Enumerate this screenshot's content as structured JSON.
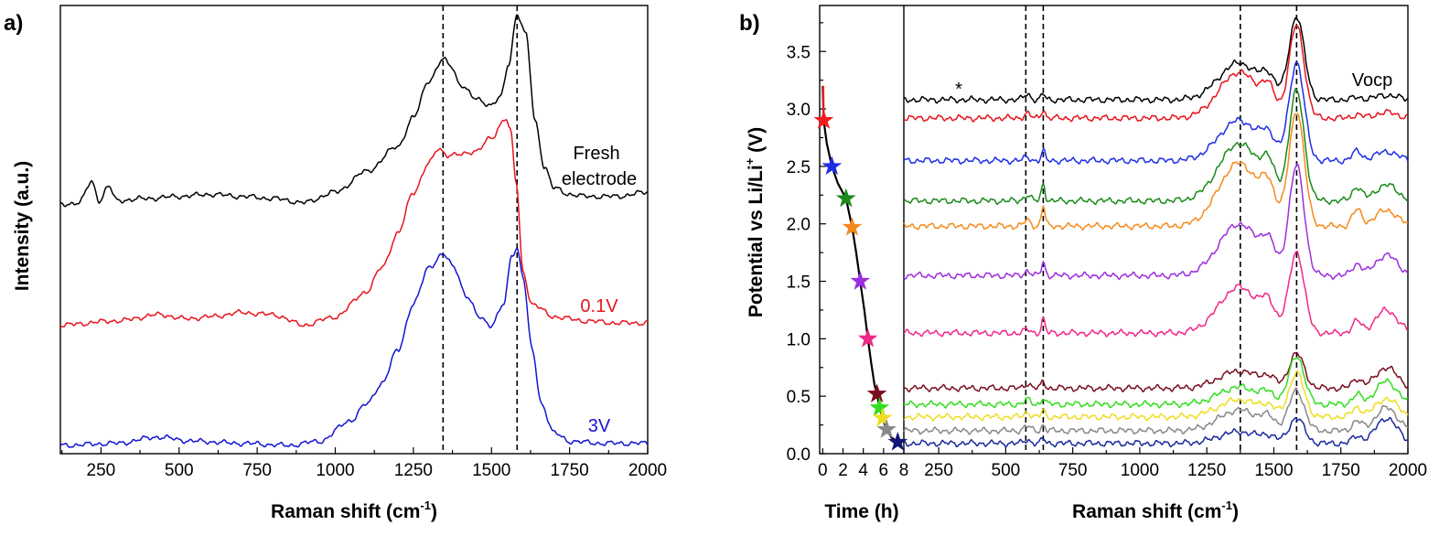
{
  "chart_data": [
    {
      "id": "a",
      "type": "line",
      "panel_label": "a)",
      "xlabel": "Raman shift (cm",
      "xlabel_sup": "-1",
      "xlabel_end": ")",
      "ylabel": "Intensity (a.u.)",
      "xlim": [
        120,
        2000
      ],
      "ylim": [
        0,
        10.8
      ],
      "xticks": [
        250,
        500,
        750,
        1000,
        1250,
        1500,
        1750,
        2000
      ],
      "dashed_x": [
        1345,
        1582
      ],
      "series": [
        {
          "name": "Fresh electrode",
          "color": "#000000",
          "baseline": 6.0,
          "points": [
            [
              120,
              6.0
            ],
            [
              180,
              6.05
            ],
            [
              220,
              6.55
            ],
            [
              245,
              6.1
            ],
            [
              275,
              6.45
            ],
            [
              300,
              6.1
            ],
            [
              400,
              6.15
            ],
            [
              500,
              6.2
            ],
            [
              600,
              6.25
            ],
            [
              700,
              6.2
            ],
            [
              800,
              6.15
            ],
            [
              900,
              6.05
            ],
            [
              1000,
              6.3
            ],
            [
              1100,
              6.8
            ],
            [
              1200,
              7.4
            ],
            [
              1250,
              8.1
            ],
            [
              1300,
              9.0
            ],
            [
              1345,
              9.5
            ],
            [
              1370,
              9.35
            ],
            [
              1400,
              8.9
            ],
            [
              1450,
              8.55
            ],
            [
              1500,
              8.4
            ],
            [
              1530,
              8.6
            ],
            [
              1555,
              9.4
            ],
            [
              1582,
              10.6
            ],
            [
              1610,
              10.1
            ],
            [
              1640,
              8.0
            ],
            [
              1670,
              6.9
            ],
            [
              1700,
              6.4
            ],
            [
              1750,
              6.25
            ],
            [
              1800,
              6.2
            ],
            [
              1900,
              6.2
            ],
            [
              2000,
              6.3
            ]
          ]
        },
        {
          "name": "0.1V",
          "color": "#e8141c",
          "baseline": 3.1,
          "points": [
            [
              120,
              3.1
            ],
            [
              300,
              3.2
            ],
            [
              440,
              3.35
            ],
            [
              520,
              3.25
            ],
            [
              600,
              3.3
            ],
            [
              700,
              3.4
            ],
            [
              800,
              3.35
            ],
            [
              900,
              3.1
            ],
            [
              1000,
              3.3
            ],
            [
              1100,
              3.9
            ],
            [
              1150,
              4.5
            ],
            [
              1200,
              5.3
            ],
            [
              1250,
              6.3
            ],
            [
              1300,
              7.0
            ],
            [
              1330,
              7.35
            ],
            [
              1360,
              7.2
            ],
            [
              1400,
              7.2
            ],
            [
              1450,
              7.3
            ],
            [
              1500,
              7.6
            ],
            [
              1545,
              8.1
            ],
            [
              1560,
              7.8
            ],
            [
              1580,
              6.5
            ],
            [
              1600,
              4.4
            ],
            [
              1630,
              3.6
            ],
            [
              1700,
              3.3
            ],
            [
              1800,
              3.2
            ],
            [
              1900,
              3.15
            ],
            [
              2000,
              3.15
            ]
          ]
        },
        {
          "name": "3V",
          "color": "#1414d2",
          "baseline": 0.2,
          "points": [
            [
              120,
              0.2
            ],
            [
              300,
              0.25
            ],
            [
              430,
              0.4
            ],
            [
              550,
              0.3
            ],
            [
              700,
              0.25
            ],
            [
              850,
              0.2
            ],
            [
              950,
              0.3
            ],
            [
              1050,
              0.8
            ],
            [
              1100,
              1.2
            ],
            [
              1150,
              1.7
            ],
            [
              1200,
              2.5
            ],
            [
              1250,
              3.6
            ],
            [
              1300,
              4.5
            ],
            [
              1345,
              4.8
            ],
            [
              1380,
              4.5
            ],
            [
              1420,
              3.8
            ],
            [
              1460,
              3.3
            ],
            [
              1500,
              3.1
            ],
            [
              1540,
              3.6
            ],
            [
              1565,
              4.8
            ],
            [
              1582,
              4.95
            ],
            [
              1600,
              4.3
            ],
            [
              1630,
              2.5
            ],
            [
              1660,
              1.2
            ],
            [
              1700,
              0.5
            ],
            [
              1750,
              0.3
            ],
            [
              1850,
              0.25
            ],
            [
              2000,
              0.25
            ]
          ]
        }
      ],
      "annotations": [
        {
          "text": "Fresh",
          "color": "#000000"
        },
        {
          "text": "electrode",
          "color": "#000000"
        },
        {
          "text": "0.1V",
          "color": "#e8141c"
        },
        {
          "text": "3V",
          "color": "#1414d2"
        }
      ]
    },
    {
      "id": "b-time",
      "type": "scatter",
      "panel_label": "b)",
      "xlabel": "Time (h)",
      "ylabel": "Potential vs Li/Li",
      "ylabel_sup": "+",
      "ylabel_end": " (V)",
      "xlim": [
        -0.3,
        8
      ],
      "ylim": [
        0.0,
        3.9
      ],
      "xticks": [
        0,
        2,
        4,
        6,
        8
      ],
      "yticks": [
        0.0,
        0.5,
        1.0,
        1.5,
        2.0,
        2.5,
        3.0,
        3.5
      ],
      "curve": [
        [
          0.0,
          3.2
        ],
        [
          0.1,
          2.9
        ],
        [
          0.4,
          2.7
        ],
        [
          0.9,
          2.5
        ],
        [
          1.5,
          2.35
        ],
        [
          2.3,
          2.22
        ],
        [
          2.9,
          1.97
        ],
        [
          3.3,
          1.75
        ],
        [
          3.7,
          1.5
        ],
        [
          4.1,
          1.25
        ],
        [
          4.45,
          1.0
        ],
        [
          4.8,
          0.78
        ],
        [
          5.1,
          0.6
        ],
        [
          5.35,
          0.52
        ],
        [
          5.6,
          0.4
        ],
        [
          5.9,
          0.31
        ],
        [
          6.3,
          0.21
        ],
        [
          6.8,
          0.14
        ],
        [
          7.4,
          0.1
        ]
      ],
      "markers": [
        {
          "x": 0.1,
          "y": 2.9,
          "color": "#f21c1c"
        },
        {
          "x": 0.9,
          "y": 2.5,
          "color": "#1f2ee6"
        },
        {
          "x": 2.3,
          "y": 2.22,
          "color": "#1a8a1a"
        },
        {
          "x": 2.9,
          "y": 1.97,
          "color": "#f58a1c"
        },
        {
          "x": 3.7,
          "y": 1.5,
          "color": "#9b2ee0"
        },
        {
          "x": 4.45,
          "y": 1.0,
          "color": "#f02888"
        },
        {
          "x": 5.35,
          "y": 0.52,
          "color": "#7a0e1e"
        },
        {
          "x": 5.6,
          "y": 0.4,
          "color": "#33dd22"
        },
        {
          "x": 5.9,
          "y": 0.31,
          "color": "#eedd22"
        },
        {
          "x": 6.3,
          "y": 0.21,
          "color": "#888888"
        },
        {
          "x": 7.4,
          "y": 0.1,
          "color": "#141478"
        }
      ]
    },
    {
      "id": "b-raman",
      "type": "line",
      "xlabel": "Raman shift (cm",
      "xlabel_sup": "-1",
      "xlabel_end": ")",
      "xlim": [
        120,
        2000
      ],
      "ylim": [
        0.0,
        3.9
      ],
      "xticks": [
        250,
        500,
        750,
        1000,
        1250,
        1500,
        1750,
        2000
      ],
      "dashed_x": [
        575,
        640,
        1375,
        1585
      ],
      "annotations": [
        {
          "text": "Vocp",
          "color": "#000000"
        },
        {
          "text": "*",
          "color": "#000000"
        }
      ],
      "series": [
        {
          "color": "#000000",
          "baseline": 3.08,
          "peak1585": 0.72,
          "peak1375": 0.32,
          "peak640": 0.05,
          "peak580": 0.05,
          "peak1800": 0.02,
          "peak1920": 0.04
        },
        {
          "color": "#e8141c",
          "baseline": 2.92,
          "peak1585": 0.8,
          "peak1375": 0.4,
          "peak640": 0.08,
          "peak580": 0.04,
          "peak1800": 0.03,
          "peak1920": 0.05
        },
        {
          "color": "#1f2ee6",
          "baseline": 2.55,
          "peak1585": 0.85,
          "peak1375": 0.35,
          "peak640": 0.08,
          "peak580": 0.03,
          "peak1800": 0.08,
          "peak1920": 0.08
        },
        {
          "color": "#1a8a1a",
          "baseline": 2.2,
          "peak1585": 0.95,
          "peak1375": 0.5,
          "peak640": 0.15,
          "peak580": 0.05,
          "peak1800": 0.12,
          "peak1920": 0.14
        },
        {
          "color": "#f58a1c",
          "baseline": 1.98,
          "peak1585": 1.0,
          "peak1375": 0.55,
          "peak640": 0.18,
          "peak580": 0.05,
          "peak1800": 0.14,
          "peak1920": 0.14
        },
        {
          "color": "#9b2ee0",
          "baseline": 1.55,
          "peak1585": 0.95,
          "peak1375": 0.45,
          "peak640": 0.12,
          "peak580": 0.04,
          "peak1800": 0.1,
          "peak1920": 0.18
        },
        {
          "color": "#f02888",
          "baseline": 1.05,
          "peak1585": 0.7,
          "peak1375": 0.4,
          "peak640": 0.12,
          "peak580": 0.03,
          "peak1800": 0.1,
          "peak1920": 0.2
        },
        {
          "color": "#7a0e1e",
          "baseline": 0.57,
          "peak1585": 0.3,
          "peak1375": 0.15,
          "peak640": 0.06,
          "peak580": 0.04,
          "peak1800": 0.08,
          "peak1920": 0.18
        },
        {
          "color": "#33dd22",
          "baseline": 0.43,
          "peak1585": 0.42,
          "peak1375": 0.15,
          "peak640": 0.06,
          "peak580": 0.04,
          "peak1800": 0.08,
          "peak1920": 0.2
        },
        {
          "color": "#eedd22",
          "baseline": 0.32,
          "peak1585": 0.38,
          "peak1375": 0.15,
          "peak640": 0.06,
          "peak580": 0.04,
          "peak1800": 0.08,
          "peak1920": 0.16
        },
        {
          "color": "#888888",
          "baseline": 0.2,
          "peak1585": 0.35,
          "peak1375": 0.18,
          "peak640": 0.05,
          "peak580": 0.04,
          "peak1800": 0.08,
          "peak1920": 0.2
        },
        {
          "color": "#1a2a9a",
          "baseline": 0.09,
          "peak1585": 0.22,
          "peak1375": 0.1,
          "peak640": 0.04,
          "peak580": 0.03,
          "peak1800": 0.06,
          "peak1920": 0.22
        }
      ]
    }
  ]
}
